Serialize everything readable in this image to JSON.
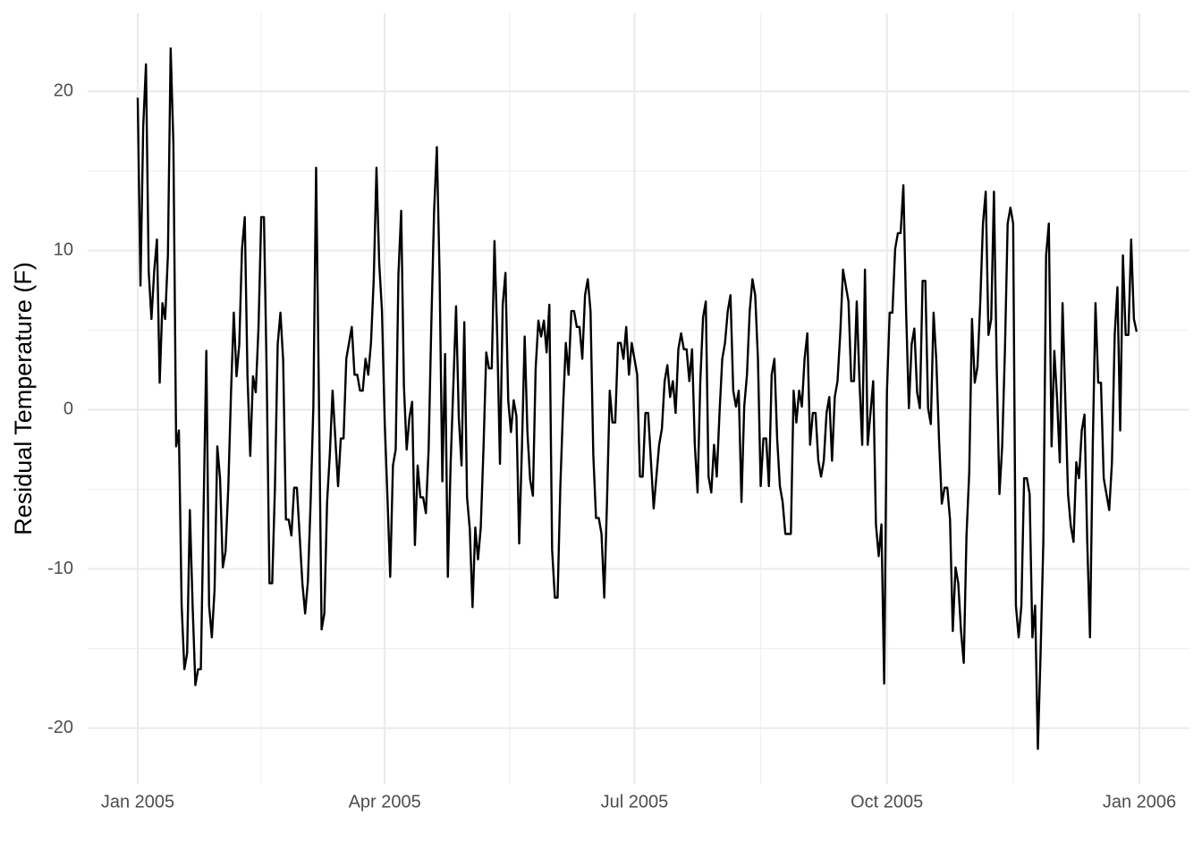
{
  "chart_data": {
    "type": "line",
    "y_label": "Residual Temperature (F)",
    "color": "#000000",
    "grid": true,
    "xlim": [
      -18.25,
      383.25
    ],
    "ylim": [
      -23.5,
      24.9
    ],
    "xticks": [
      {
        "value": 0,
        "label": "Jan 2005"
      },
      {
        "value": 90,
        "label": "Apr 2005"
      },
      {
        "value": 181,
        "label": "Jul 2005"
      },
      {
        "value": 273,
        "label": "Oct 2005"
      },
      {
        "value": 365,
        "label": "Jan 2006"
      }
    ],
    "yticks": [
      -20,
      -10,
      0,
      10,
      20
    ],
    "x": [
      0,
      1,
      2,
      3,
      4,
      5,
      6,
      7,
      8,
      9,
      10,
      11,
      12,
      13,
      14,
      15,
      16,
      17,
      18,
      19,
      20,
      21,
      22,
      23,
      24,
      25,
      26,
      27,
      28,
      29,
      30,
      31,
      32,
      33,
      34,
      35,
      36,
      37,
      38,
      39,
      40,
      41,
      42,
      43,
      44,
      45,
      46,
      47,
      48,
      49,
      50,
      51,
      52,
      53,
      54,
      55,
      56,
      57,
      58,
      59,
      60,
      61,
      62,
      63,
      64,
      65,
      66,
      67,
      68,
      69,
      70,
      71,
      72,
      73,
      74,
      75,
      76,
      77,
      78,
      79,
      80,
      81,
      82,
      83,
      84,
      85,
      86,
      87,
      88,
      89,
      90,
      91,
      92,
      93,
      94,
      95,
      96,
      97,
      98,
      99,
      100,
      101,
      102,
      103,
      104,
      105,
      106,
      107,
      108,
      109,
      110,
      111,
      112,
      113,
      114,
      115,
      116,
      117,
      118,
      119,
      120,
      121,
      122,
      123,
      124,
      125,
      126,
      127,
      128,
      129,
      130,
      131,
      132,
      133,
      134,
      135,
      136,
      137,
      138,
      139,
      140,
      141,
      142,
      143,
      144,
      145,
      146,
      147,
      148,
      149,
      150,
      151,
      152,
      153,
      154,
      155,
      156,
      157,
      158,
      159,
      160,
      161,
      162,
      163,
      164,
      165,
      166,
      167,
      168,
      169,
      170,
      171,
      172,
      173,
      174,
      175,
      176,
      177,
      178,
      179,
      180,
      181,
      182,
      183,
      184,
      185,
      186,
      187,
      188,
      189,
      190,
      191,
      192,
      193,
      194,
      195,
      196,
      197,
      198,
      199,
      200,
      201,
      202,
      203,
      204,
      205,
      206,
      207,
      208,
      209,
      210,
      211,
      212,
      213,
      214,
      215,
      216,
      217,
      218,
      219,
      220,
      221,
      222,
      223,
      224,
      225,
      226,
      227,
      228,
      229,
      230,
      231,
      232,
      233,
      234,
      235,
      236,
      237,
      238,
      239,
      240,
      241,
      242,
      243,
      244,
      245,
      246,
      247,
      248,
      249,
      250,
      251,
      252,
      253,
      254,
      255,
      256,
      257,
      258,
      259,
      260,
      261,
      262,
      263,
      264,
      265,
      266,
      267,
      268,
      269,
      270,
      271,
      272,
      273,
      274,
      275,
      276,
      277,
      278,
      279,
      280,
      281,
      282,
      283,
      284,
      285,
      286,
      287,
      288,
      289,
      290,
      291,
      292,
      293,
      294,
      295,
      296,
      297,
      298,
      299,
      300,
      301,
      302,
      303,
      304,
      305,
      306,
      307,
      308,
      309,
      310,
      311,
      312,
      313,
      314,
      315,
      316,
      317,
      318,
      319,
      320,
      321,
      322,
      323,
      324,
      325,
      326,
      327,
      328,
      329,
      330,
      331,
      332,
      333,
      334,
      335,
      336,
      337,
      338,
      339,
      340,
      341,
      342,
      343,
      344,
      345,
      346,
      347,
      348,
      349,
      350,
      351,
      352,
      353,
      354,
      355,
      356,
      357,
      358,
      359,
      360,
      361,
      362,
      363,
      364
    ],
    "values": [
      19.6,
      7.8,
      17.8,
      21.7,
      8.7,
      5.7,
      8.7,
      10.7,
      1.7,
      6.7,
      5.7,
      9.7,
      22.7,
      16.7,
      -2.3,
      -1.3,
      -12.3,
      -16.3,
      -15.3,
      -6.3,
      -12.3,
      -17.3,
      -16.3,
      -16.3,
      -6.3,
      3.7,
      -12.3,
      -14.3,
      -11.3,
      -2.3,
      -4.3,
      -9.9,
      -8.9,
      -4.9,
      1.1,
      6.1,
      2.1,
      4.1,
      10.1,
      12.1,
      2.1,
      -2.9,
      2.1,
      1.1,
      5.1,
      12.1,
      12.1,
      2.1,
      -10.9,
      -10.9,
      -4.9,
      4.1,
      6.1,
      3.1,
      -6.9,
      -6.9,
      -7.9,
      -4.9,
      -4.9,
      -7.9,
      -10.9,
      -12.8,
      -10.8,
      -5.8,
      0.2,
      15.2,
      1.2,
      -13.8,
      -12.8,
      -5.8,
      -2.8,
      1.2,
      -1.8,
      -4.8,
      -1.8,
      -1.8,
      3.2,
      4.2,
      5.2,
      2.2,
      2.2,
      1.2,
      1.2,
      3.2,
      2.2,
      4.2,
      8.2,
      15.2,
      9.2,
      6.2,
      -0.8,
      -5.5,
      -10.5,
      -3.5,
      -2.5,
      8.5,
      12.5,
      1.5,
      -2.5,
      -0.5,
      0.5,
      -8.5,
      -3.5,
      -5.5,
      -5.5,
      -6.5,
      -2.5,
      5.5,
      12.5,
      16.5,
      8.5,
      -4.5,
      3.5,
      -10.5,
      -3.5,
      1.5,
      6.5,
      -0.5,
      -3.5,
      5.5,
      -5.5,
      -7.5,
      -12.4,
      -7.4,
      -9.4,
      -7.4,
      -2.4,
      3.6,
      2.6,
      2.6,
      10.6,
      4.6,
      -3.4,
      6.6,
      8.6,
      0.6,
      -1.4,
      0.6,
      -0.4,
      -8.4,
      -2.4,
      4.6,
      -1.4,
      -4.4,
      -5.4,
      2.6,
      5.6,
      4.6,
      5.6,
      3.6,
      6.6,
      -8.8,
      -11.8,
      -11.8,
      -4.8,
      0.2,
      4.2,
      2.2,
      6.2,
      6.2,
      5.2,
      5.2,
      3.2,
      7.2,
      8.2,
      6.2,
      -2.8,
      -6.8,
      -6.8,
      -7.8,
      -11.8,
      -5.8,
      1.2,
      -0.8,
      -0.8,
      4.2,
      4.2,
      3.2,
      5.2,
      2.2,
      4.2,
      3.2,
      2.2,
      -4.2,
      -4.2,
      -0.2,
      -0.2,
      -3.2,
      -6.2,
      -4.2,
      -2.2,
      -1.2,
      1.8,
      2.8,
      0.8,
      1.8,
      -0.2,
      3.8,
      4.8,
      3.8,
      3.8,
      1.8,
      3.8,
      -2.2,
      -5.2,
      1.8,
      5.8,
      6.8,
      -4.2,
      -5.2,
      -2.2,
      -4.2,
      -0.2,
      3.2,
      4.2,
      6.2,
      7.2,
      1.2,
      0.2,
      1.2,
      -5.8,
      0.2,
      2.2,
      6.2,
      8.2,
      7.2,
      3.2,
      -4.8,
      -1.8,
      -1.8,
      -4.8,
      2.2,
      3.2,
      -1.8,
      -4.8,
      -5.8,
      -7.8,
      -7.8,
      -7.8,
      1.2,
      -0.8,
      1.2,
      0.2,
      3.2,
      4.8,
      -2.2,
      -0.2,
      -0.2,
      -3.2,
      -4.2,
      -3.2,
      -0.2,
      0.8,
      -3.2,
      0.8,
      1.8,
      4.8,
      8.8,
      7.8,
      6.8,
      1.8,
      1.8,
      6.8,
      1.8,
      -2.2,
      8.8,
      -2.2,
      -0.2,
      1.8,
      -7.2,
      -9.2,
      -7.2,
      -17.2,
      1.1,
      6.1,
      6.1,
      10.1,
      11.1,
      11.1,
      14.1,
      6.1,
      0.1,
      4.1,
      5.1,
      1.1,
      0.1,
      8.1,
      8.1,
      0.1,
      -0.9,
      6.1,
      3.1,
      -1.9,
      -5.9,
      -4.9,
      -4.9,
      -6.9,
      -13.9,
      -9.9,
      -10.9,
      -13.9,
      -15.9,
      -7.9,
      -3.9,
      5.7,
      1.7,
      2.7,
      6.7,
      11.7,
      13.7,
      4.7,
      5.7,
      13.7,
      2.7,
      -5.3,
      -2.3,
      3.7,
      11.7,
      12.7,
      11.7,
      -12.3,
      -14.3,
      -12.3,
      -4.3,
      -4.3,
      -5.3,
      -14.3,
      -12.3,
      -21.3,
      -15.3,
      -8.3,
      9.7,
      11.7,
      -2.3,
      3.7,
      0.7,
      -3.3,
      6.7,
      0.7,
      -5.3,
      -7.3,
      -8.3,
      -3.3,
      -4.3,
      -1.3,
      -0.3,
      -8.3,
      -14.3,
      -2.3,
      6.7,
      1.7,
      1.7,
      -4.3,
      -5.3,
      -6.3,
      -3.3,
      4.7,
      7.7,
      -1.3,
      9.7,
      4.7,
      4.7,
      10.7,
      5.7,
      4.9
    ]
  }
}
